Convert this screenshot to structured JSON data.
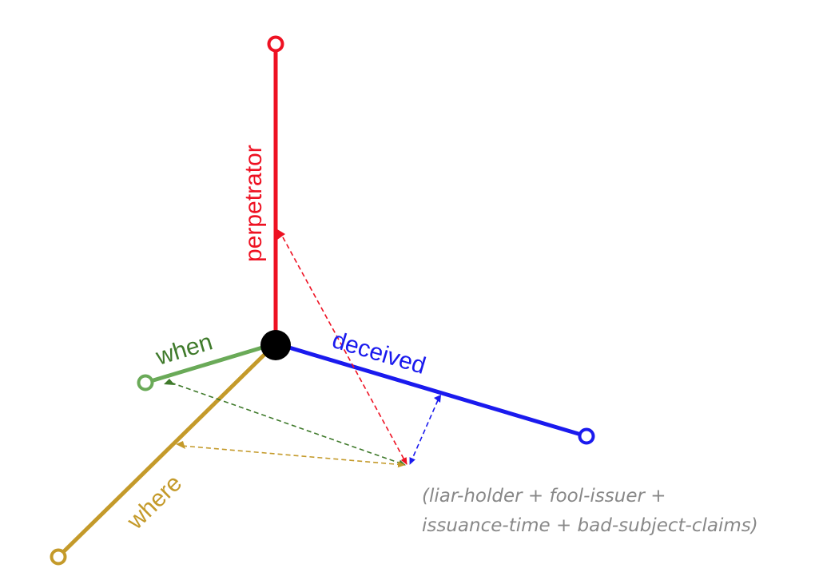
{
  "axes": [
    {
      "id": "perpetrator",
      "label": "perpetrator",
      "color": "#ee1122"
    },
    {
      "id": "deceived",
      "label": "deceived",
      "color": "#1a1aee"
    },
    {
      "id": "when",
      "label": "when",
      "color": "#6aaa58",
      "label_color": "#3f7a2b"
    },
    {
      "id": "where",
      "label": "where",
      "color": "#c49a2a"
    }
  ],
  "origin_color": "#000000",
  "caption": {
    "line1": "(liar-holder + fool-issuer +",
    "line2": "issuance-time + bad-subject-claims)"
  }
}
